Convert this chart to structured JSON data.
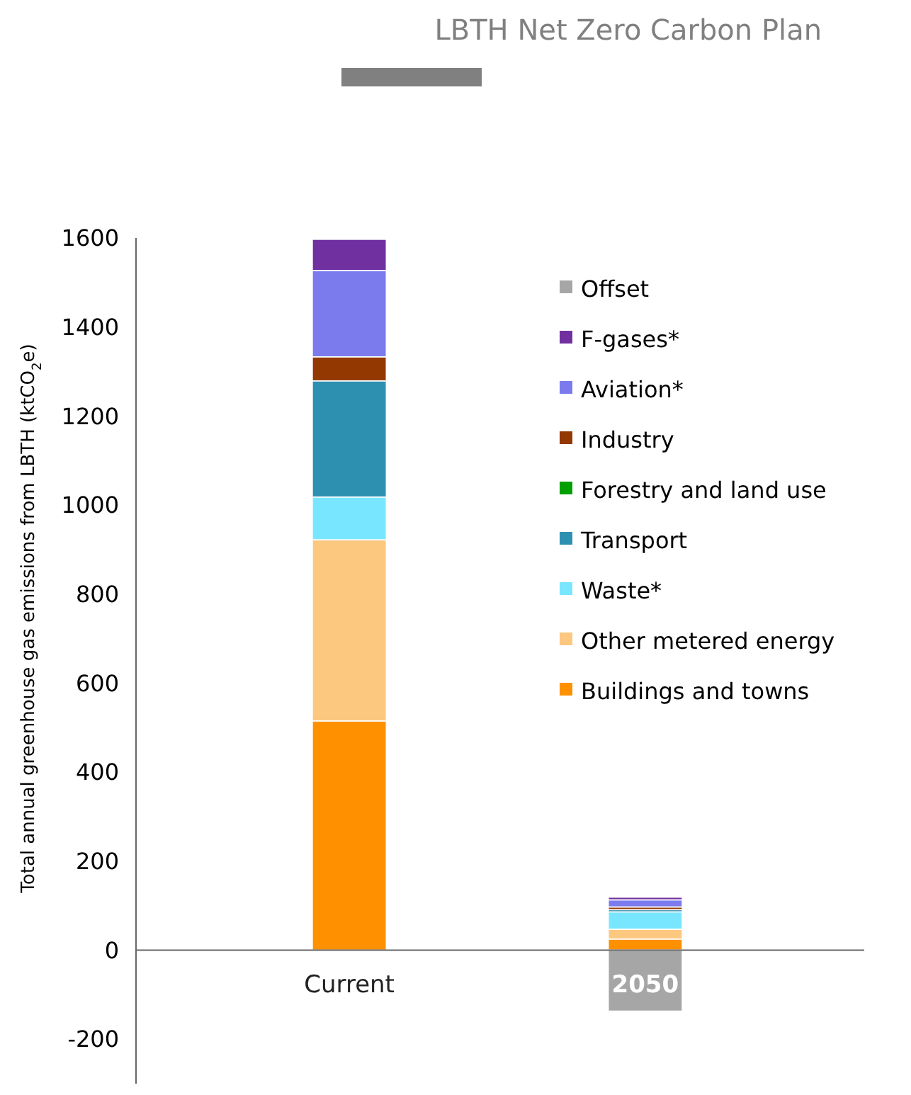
{
  "chart_data": {
    "type": "bar",
    "title": "LBTH Net Zero Carbon Plan",
    "ylabel": "Total annual greenhouse gas emissions from LBTH (ktCO$_{2}$e)",
    "categories": [
      "Current",
      "2050"
    ],
    "stacked": true,
    "series": [
      {
        "name": "Buildings and towns",
        "color": "#ff9000",
        "values": [
          515,
          25
        ]
      },
      {
        "name": "Other metered energy",
        "color": "#fcc77f",
        "values": [
          407,
          22
        ]
      },
      {
        "name": "Waste*",
        "color": "#79e6ff",
        "values": [
          96,
          39
        ]
      },
      {
        "name": "Transport",
        "color": "#2e90b0",
        "values": [
          261,
          5
        ]
      },
      {
        "name": "Forestry and land use",
        "color": "#00a000",
        "values": [
          0,
          0
        ]
      },
      {
        "name": "Industry",
        "color": "#933800",
        "values": [
          54,
          6
        ]
      },
      {
        "name": "Aviation*",
        "color": "#7b7bee",
        "values": [
          194,
          16
        ]
      },
      {
        "name": "F-gases*",
        "color": "#7030a0",
        "values": [
          70,
          6
        ]
      },
      {
        "name": "Offset",
        "color": "#a6a6a6",
        "values": [
          0,
          -137
        ]
      }
    ],
    "ylim": [
      -300,
      1600
    ],
    "yticks": [
      -200,
      0,
      200,
      400,
      600,
      800,
      1000,
      1200,
      1400,
      1600
    ],
    "grid": false,
    "legend": "right"
  }
}
